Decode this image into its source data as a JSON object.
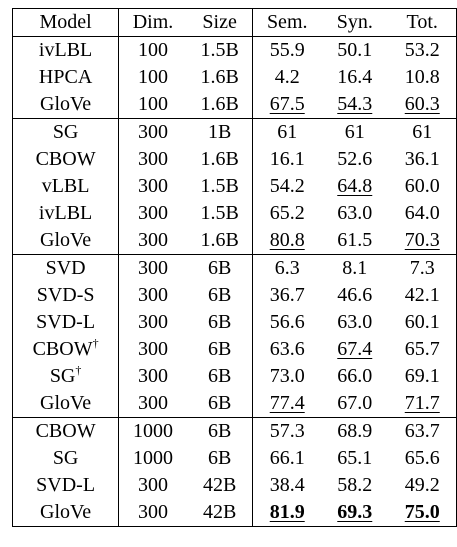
{
  "columns": [
    "Model",
    "Dim.",
    "Size",
    "Sem.",
    "Syn.",
    "Tot."
  ],
  "groups": [
    {
      "rows": [
        {
          "model": "ivLBL",
          "sup": "",
          "dim": "100",
          "size": "1.5B",
          "sem": "55.9",
          "syn": "50.1",
          "tot": "53.2",
          "fmt": {}
        },
        {
          "model": "HPCA",
          "sup": "",
          "dim": "100",
          "size": "1.6B",
          "sem": "4.2",
          "syn": "16.4",
          "tot": "10.8",
          "fmt": {}
        },
        {
          "model": "GloVe",
          "sup": "",
          "dim": "100",
          "size": "1.6B",
          "sem": "67.5",
          "syn": "54.3",
          "tot": "60.3",
          "fmt": {
            "sem": "u",
            "syn": "u",
            "tot": "u"
          }
        }
      ]
    },
    {
      "rows": [
        {
          "model": "SG",
          "sup": "",
          "dim": "300",
          "size": "1B",
          "sem": "61",
          "syn": "61",
          "tot": "61",
          "fmt": {}
        },
        {
          "model": "CBOW",
          "sup": "",
          "dim": "300",
          "size": "1.6B",
          "sem": "16.1",
          "syn": "52.6",
          "tot": "36.1",
          "fmt": {}
        },
        {
          "model": "vLBL",
          "sup": "",
          "dim": "300",
          "size": "1.5B",
          "sem": "54.2",
          "syn": "64.8",
          "tot": "60.0",
          "fmt": {
            "syn": "u"
          }
        },
        {
          "model": "ivLBL",
          "sup": "",
          "dim": "300",
          "size": "1.5B",
          "sem": "65.2",
          "syn": "63.0",
          "tot": "64.0",
          "fmt": {}
        },
        {
          "model": "GloVe",
          "sup": "",
          "dim": "300",
          "size": "1.6B",
          "sem": "80.8",
          "syn": "61.5",
          "tot": "70.3",
          "fmt": {
            "sem": "u",
            "tot": "u"
          }
        }
      ]
    },
    {
      "rows": [
        {
          "model": "SVD",
          "sup": "",
          "dim": "300",
          "size": "6B",
          "sem": "6.3",
          "syn": "8.1",
          "tot": "7.3",
          "fmt": {}
        },
        {
          "model": "SVD-S",
          "sup": "",
          "dim": "300",
          "size": "6B",
          "sem": "36.7",
          "syn": "46.6",
          "tot": "42.1",
          "fmt": {}
        },
        {
          "model": "SVD-L",
          "sup": "",
          "dim": "300",
          "size": "6B",
          "sem": "56.6",
          "syn": "63.0",
          "tot": "60.1",
          "fmt": {}
        },
        {
          "model": "CBOW",
          "sup": "†",
          "dim": "300",
          "size": "6B",
          "sem": "63.6",
          "syn": "67.4",
          "tot": "65.7",
          "fmt": {
            "syn": "u"
          }
        },
        {
          "model": "SG",
          "sup": "†",
          "dim": "300",
          "size": "6B",
          "sem": "73.0",
          "syn": "66.0",
          "tot": "69.1",
          "fmt": {}
        },
        {
          "model": "GloVe",
          "sup": "",
          "dim": "300",
          "size": "6B",
          "sem": "77.4",
          "syn": "67.0",
          "tot": "71.7",
          "fmt": {
            "sem": "u",
            "tot": "u"
          }
        }
      ]
    },
    {
      "rows": [
        {
          "model": "CBOW",
          "sup": "",
          "dim": "1000",
          "size": "6B",
          "sem": "57.3",
          "syn": "68.9",
          "tot": "63.7",
          "fmt": {}
        },
        {
          "model": "SG",
          "sup": "",
          "dim": "1000",
          "size": "6B",
          "sem": "66.1",
          "syn": "65.1",
          "tot": "65.6",
          "fmt": {}
        },
        {
          "model": "SVD-L",
          "sup": "",
          "dim": "300",
          "size": "42B",
          "sem": "38.4",
          "syn": "58.2",
          "tot": "49.2",
          "fmt": {}
        },
        {
          "model": "GloVe",
          "sup": "",
          "dim": "300",
          "size": "42B",
          "sem": "81.9",
          "syn": "69.3",
          "tot": "75.0",
          "fmt": {
            "sem": "bu",
            "syn": "bu",
            "tot": "bu"
          }
        }
      ]
    }
  ]
}
